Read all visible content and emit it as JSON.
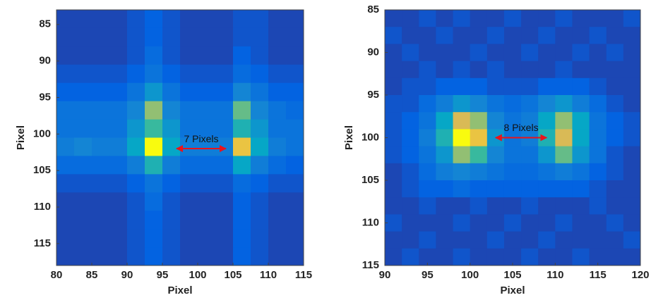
{
  "chart_data": [
    {
      "type": "heatmap",
      "xlabel": "Pixel",
      "ylabel": "Pixel",
      "colormap": "parula",
      "clim": [
        0,
        10
      ],
      "xlim": [
        80,
        115
      ],
      "ylim": [
        118,
        83
      ],
      "xticks": [
        80,
        85,
        90,
        95,
        100,
        105,
        110,
        115
      ],
      "yticks": [
        85,
        90,
        95,
        100,
        105,
        110,
        115
      ],
      "xbins": [
        80,
        82.5,
        85,
        87.5,
        90,
        92.5,
        95,
        97.5,
        100,
        102.5,
        105,
        107.5,
        110,
        112.5,
        115
      ],
      "ybins": [
        83,
        85.5,
        88,
        90.5,
        93,
        95.5,
        98,
        100.5,
        103,
        105.5,
        108,
        110.5,
        113,
        115.5,
        118
      ],
      "values": [
        [
          1,
          1,
          1,
          1,
          1.5,
          2,
          1.5,
          1,
          1,
          1,
          1.5,
          1.5,
          1,
          1
        ],
        [
          1,
          1,
          1,
          1,
          1.5,
          2,
          1.5,
          1,
          1,
          1,
          1.5,
          1.5,
          1,
          1
        ],
        [
          1,
          1,
          1,
          1,
          1.5,
          2.5,
          1.5,
          1,
          1,
          1,
          2,
          1.5,
          1,
          1
        ],
        [
          1.5,
          1.5,
          1.5,
          1.5,
          2,
          3,
          2,
          1.5,
          1.5,
          1.5,
          2.5,
          2,
          1.5,
          1.5
        ],
        [
          2,
          2,
          2,
          2,
          3,
          4.5,
          3,
          2,
          2,
          2,
          4,
          3,
          2,
          2
        ],
        [
          3,
          3,
          3,
          3,
          4,
          7,
          4,
          3,
          3,
          3,
          6.5,
          4,
          3,
          2.5
        ],
        [
          3,
          3,
          3,
          3,
          4.5,
          6,
          4.5,
          3,
          3,
          3,
          5.5,
          4.5,
          3,
          3
        ],
        [
          3.5,
          4,
          3.5,
          3.5,
          5,
          10,
          5,
          3.5,
          3.5,
          3.5,
          8.5,
          5,
          3.5,
          3
        ],
        [
          2.5,
          2.5,
          2.5,
          2.5,
          3.5,
          5.5,
          3.5,
          2.5,
          2.5,
          2.5,
          5,
          3.5,
          2.5,
          2
        ],
        [
          1.5,
          1.5,
          1.5,
          1.5,
          2,
          3,
          2,
          1.5,
          1.5,
          1.5,
          2.5,
          2,
          1.5,
          1.5
        ],
        [
          1,
          1,
          1,
          1,
          1.5,
          2.5,
          1.5,
          1,
          1,
          1,
          2,
          1.5,
          1,
          1
        ],
        [
          1,
          1,
          1,
          1,
          1.5,
          2,
          1.5,
          1,
          1,
          1,
          2,
          1.5,
          1,
          1
        ],
        [
          1,
          1,
          1,
          1,
          1.5,
          2,
          1.5,
          1,
          1,
          1,
          2,
          1.5,
          1,
          1
        ],
        [
          1,
          1,
          1,
          1,
          1.5,
          2,
          1.5,
          1,
          1,
          1,
          2,
          1.5,
          1,
          1
        ]
      ],
      "annotation": {
        "text": "7 Pixels",
        "x": [
          97,
          104
        ],
        "y": 102,
        "color": "#e8141b"
      }
    },
    {
      "type": "heatmap",
      "xlabel": "Pixel",
      "ylabel": "Pixel",
      "colormap": "parula",
      "clim": [
        0,
        10
      ],
      "xlim": [
        90,
        120
      ],
      "ylim": [
        115,
        85
      ],
      "xticks": [
        90,
        95,
        100,
        105,
        110,
        115,
        120
      ],
      "yticks": [
        85,
        90,
        95,
        100,
        105,
        110,
        115
      ],
      "xbins": [
        90,
        92,
        94,
        96,
        98,
        100,
        102,
        104,
        106,
        108,
        110,
        112,
        114,
        116,
        118,
        120
      ],
      "ybins": [
        85,
        87,
        89,
        91,
        93,
        95,
        97,
        99,
        101,
        103,
        105,
        107,
        109,
        111,
        113,
        115
      ],
      "values": [
        [
          1,
          1,
          1.5,
          1,
          1.5,
          1,
          1,
          1.5,
          1,
          1,
          1.5,
          1,
          1,
          1,
          1.5
        ],
        [
          1.5,
          1,
          1,
          1.5,
          1,
          1,
          1.5,
          1,
          1,
          1.5,
          1,
          1,
          1.5,
          1,
          1
        ],
        [
          1,
          1.5,
          1,
          1,
          1,
          1.5,
          1,
          1,
          1.5,
          1,
          1,
          1.5,
          1,
          1.5,
          1
        ],
        [
          1,
          1,
          1.5,
          1,
          1.5,
          1,
          1.5,
          1,
          1,
          1,
          1.5,
          1,
          1,
          1,
          1
        ],
        [
          1,
          1.5,
          1.5,
          2,
          2,
          2,
          1.5,
          1.5,
          1.5,
          2,
          2,
          2,
          1.5,
          1,
          1
        ],
        [
          1.5,
          1.5,
          2.5,
          3.5,
          4.5,
          4,
          3,
          2.5,
          3,
          4,
          4.5,
          3.5,
          2.5,
          1.5,
          1
        ],
        [
          1.5,
          2,
          3,
          5,
          8,
          7,
          4,
          3,
          3.5,
          5,
          7,
          5,
          3,
          2,
          1.5
        ],
        [
          1.5,
          2,
          3.5,
          5.5,
          10,
          8.5,
          4.5,
          3,
          3.5,
          5.5,
          8,
          5,
          3,
          2,
          1.5
        ],
        [
          1.5,
          2,
          3,
          4.5,
          7,
          6,
          4,
          3,
          3,
          4.5,
          6.5,
          4.5,
          3,
          1.5,
          1
        ],
        [
          1,
          1.5,
          2.5,
          3.5,
          4,
          3.5,
          3,
          2.5,
          2.5,
          3,
          3.5,
          3,
          2,
          1.5,
          1
        ],
        [
          1,
          1.5,
          2,
          2,
          2.5,
          2,
          2,
          2,
          2,
          2,
          2,
          2,
          1.5,
          1,
          1
        ],
        [
          1,
          1,
          1.5,
          1,
          1,
          1.5,
          1,
          1,
          1.5,
          1,
          1,
          1,
          1.5,
          1,
          1
        ],
        [
          1.5,
          1,
          1,
          1,
          1.5,
          1,
          1,
          1.5,
          1,
          1,
          1.5,
          1,
          1,
          1.5,
          1
        ],
        [
          1,
          1,
          1.5,
          1,
          1,
          1,
          1.5,
          1,
          1,
          1.5,
          1,
          1,
          1,
          1,
          1.5
        ],
        [
          1,
          1.5,
          1,
          1,
          1.5,
          1,
          1,
          1,
          1.5,
          1,
          1,
          1.5,
          1,
          1,
          1
        ]
      ],
      "annotation": {
        "text": "8 Pixels",
        "x": [
          103,
          109
        ],
        "y": 100,
        "color": "#e8141b"
      }
    }
  ]
}
